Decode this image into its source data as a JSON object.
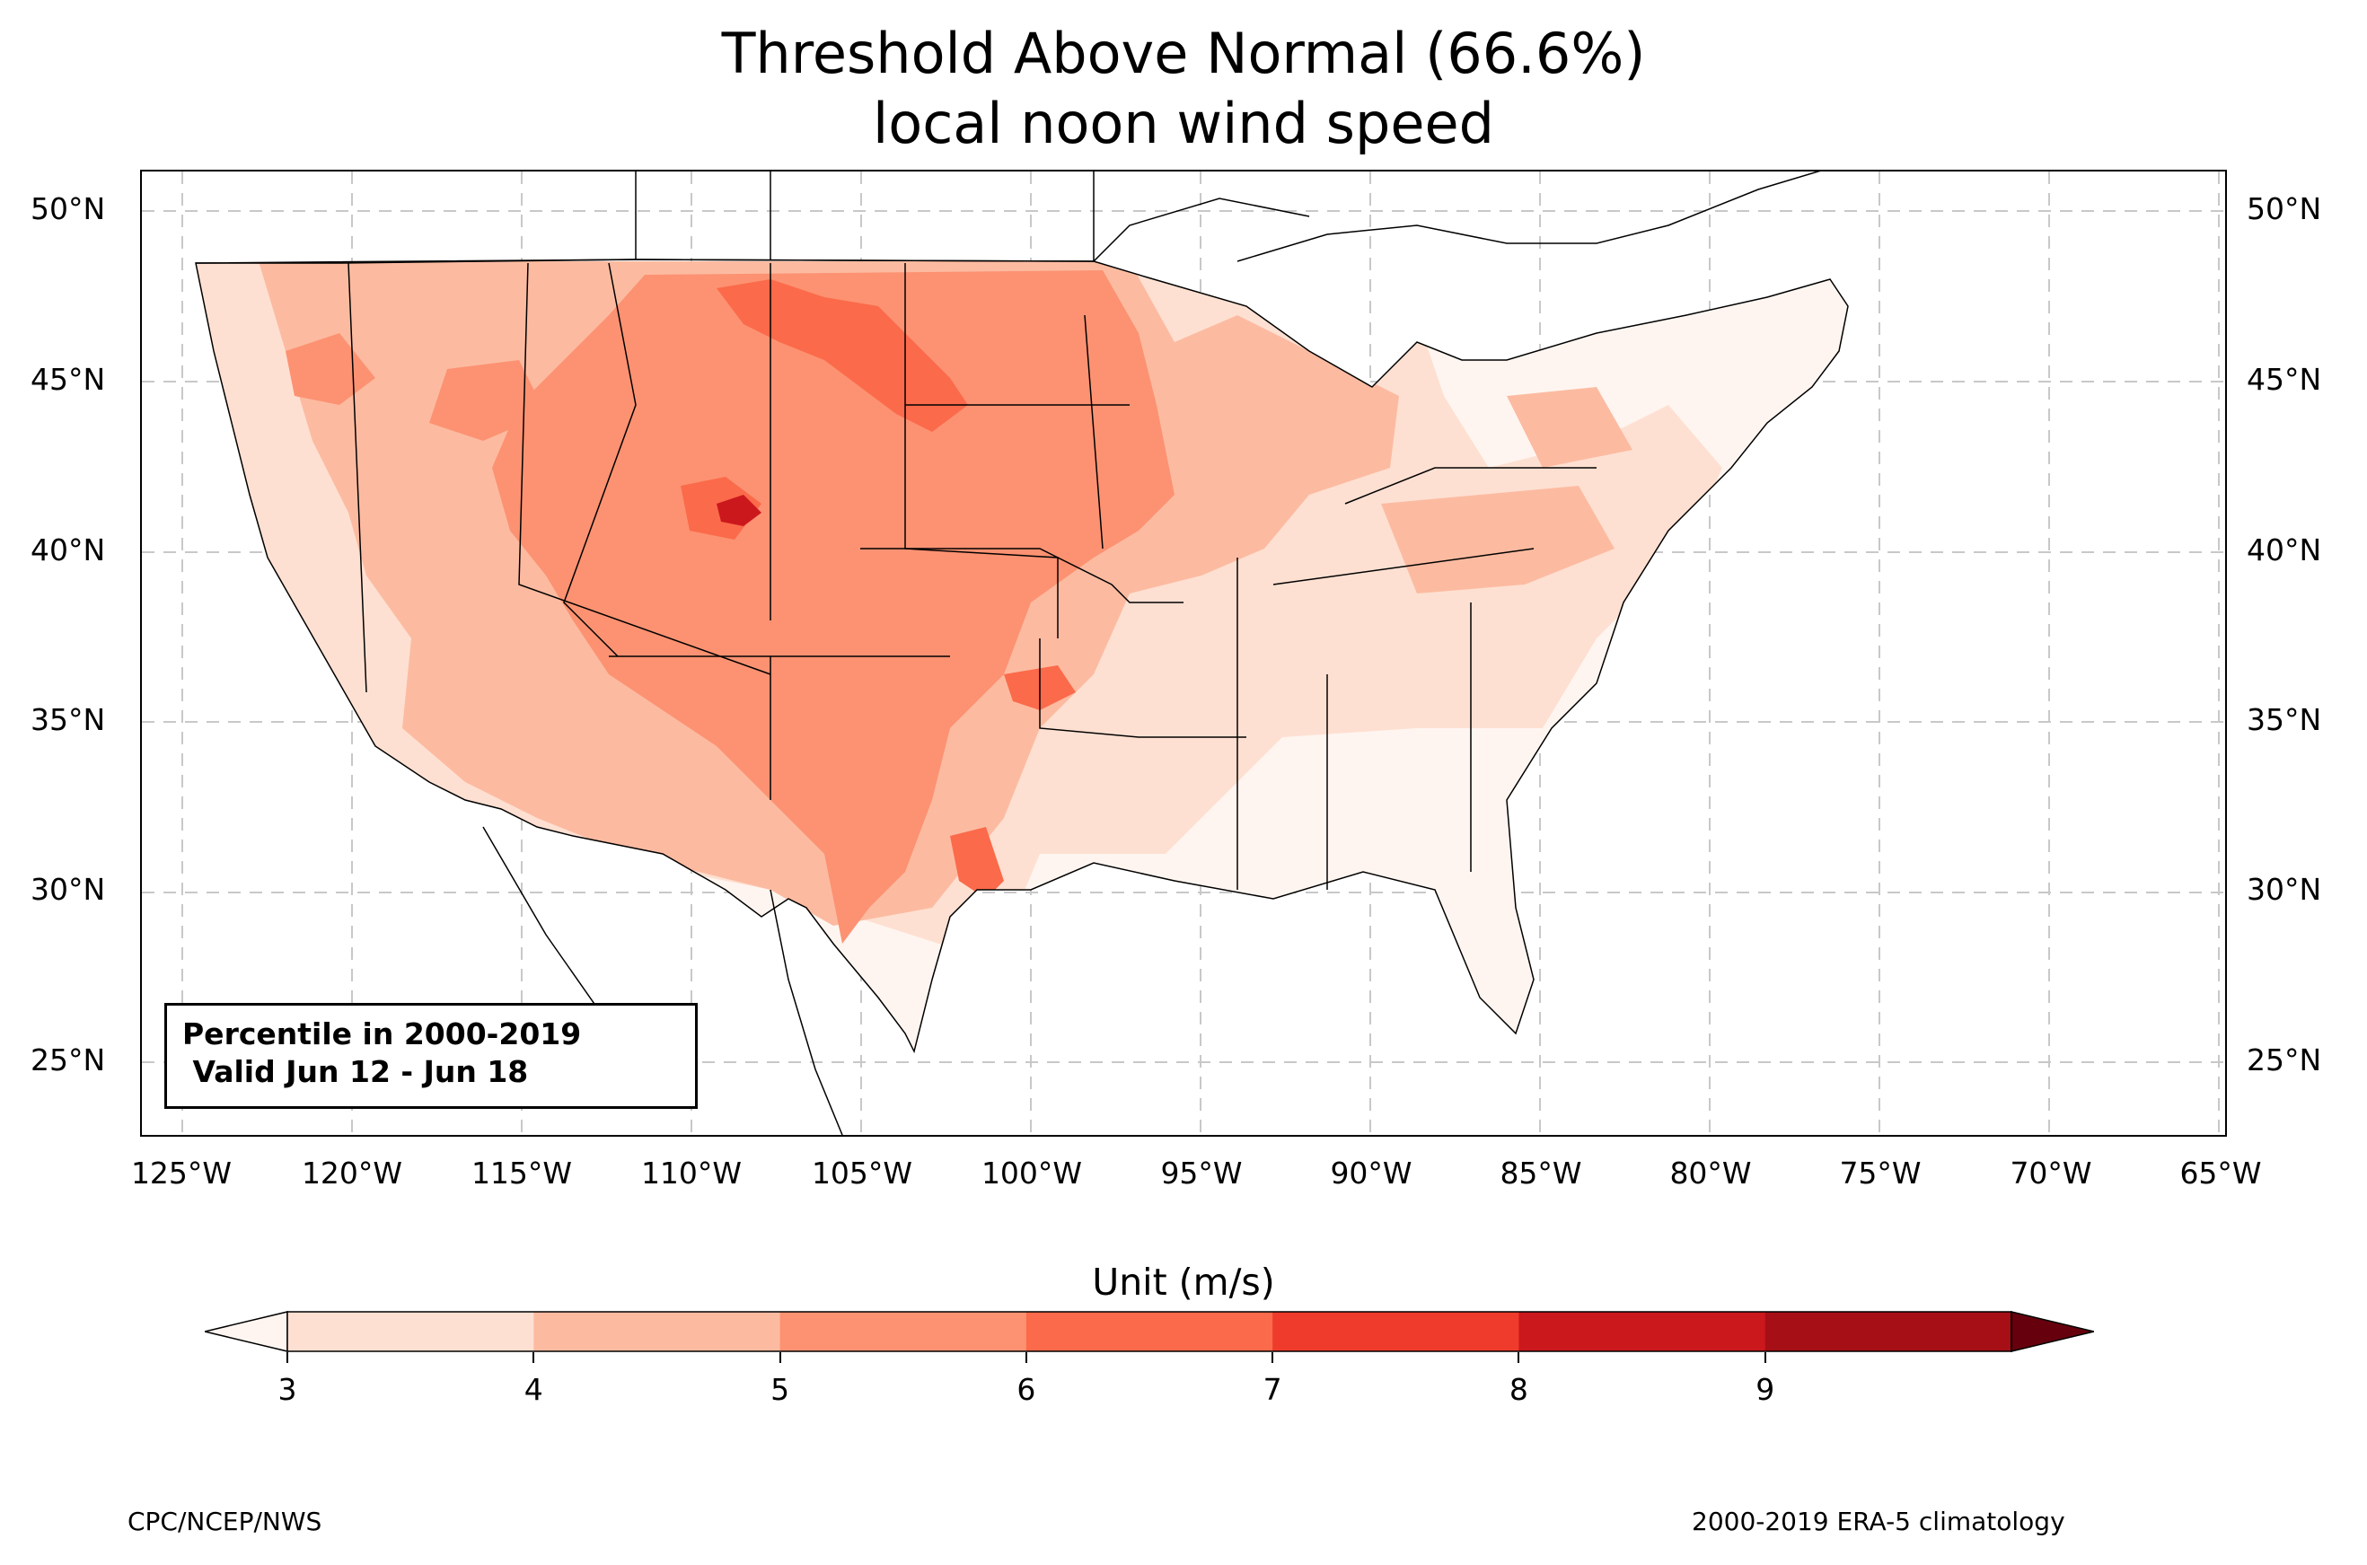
{
  "title": {
    "line1": "Threshold Above Normal (66.6%)",
    "line2": "local noon wind speed"
  },
  "map": {
    "region": "Contiguous United States",
    "lat_labels": [
      "50°N",
      "45°N",
      "40°N",
      "35°N",
      "30°N",
      "25°N"
    ],
    "lon_labels": [
      "125°W",
      "120°W",
      "115°W",
      "110°W",
      "105°W",
      "100°W",
      "95°W",
      "90°W",
      "85°W",
      "80°W",
      "75°W",
      "70°W",
      "65°W"
    ],
    "lat_range": [
      22.8,
      51.2
    ],
    "lon_range": [
      -126.2,
      -64.8
    ],
    "gridlines": true,
    "gridline_style": "dashed-gray"
  },
  "infobox": {
    "line1": "Percentile in 2000-2019",
    "line2": " Valid Jun 12 - Jun 18"
  },
  "colorbar": {
    "title": "Unit (m/s)",
    "ticks": [
      "3",
      "4",
      "5",
      "6",
      "7",
      "8",
      "9"
    ],
    "colors": [
      "#fee0d2",
      "#fcbba1",
      "#fc9272",
      "#fb6a4a",
      "#ef3b2c",
      "#cb181d",
      "#a50f15"
    ],
    "under_color": "#fff5f0",
    "over_color": "#67000d",
    "extend": "both"
  },
  "footer": {
    "left": "CPC/NCEP/NWS",
    "right": "2000-2019 ERA-5 climatology"
  }
}
